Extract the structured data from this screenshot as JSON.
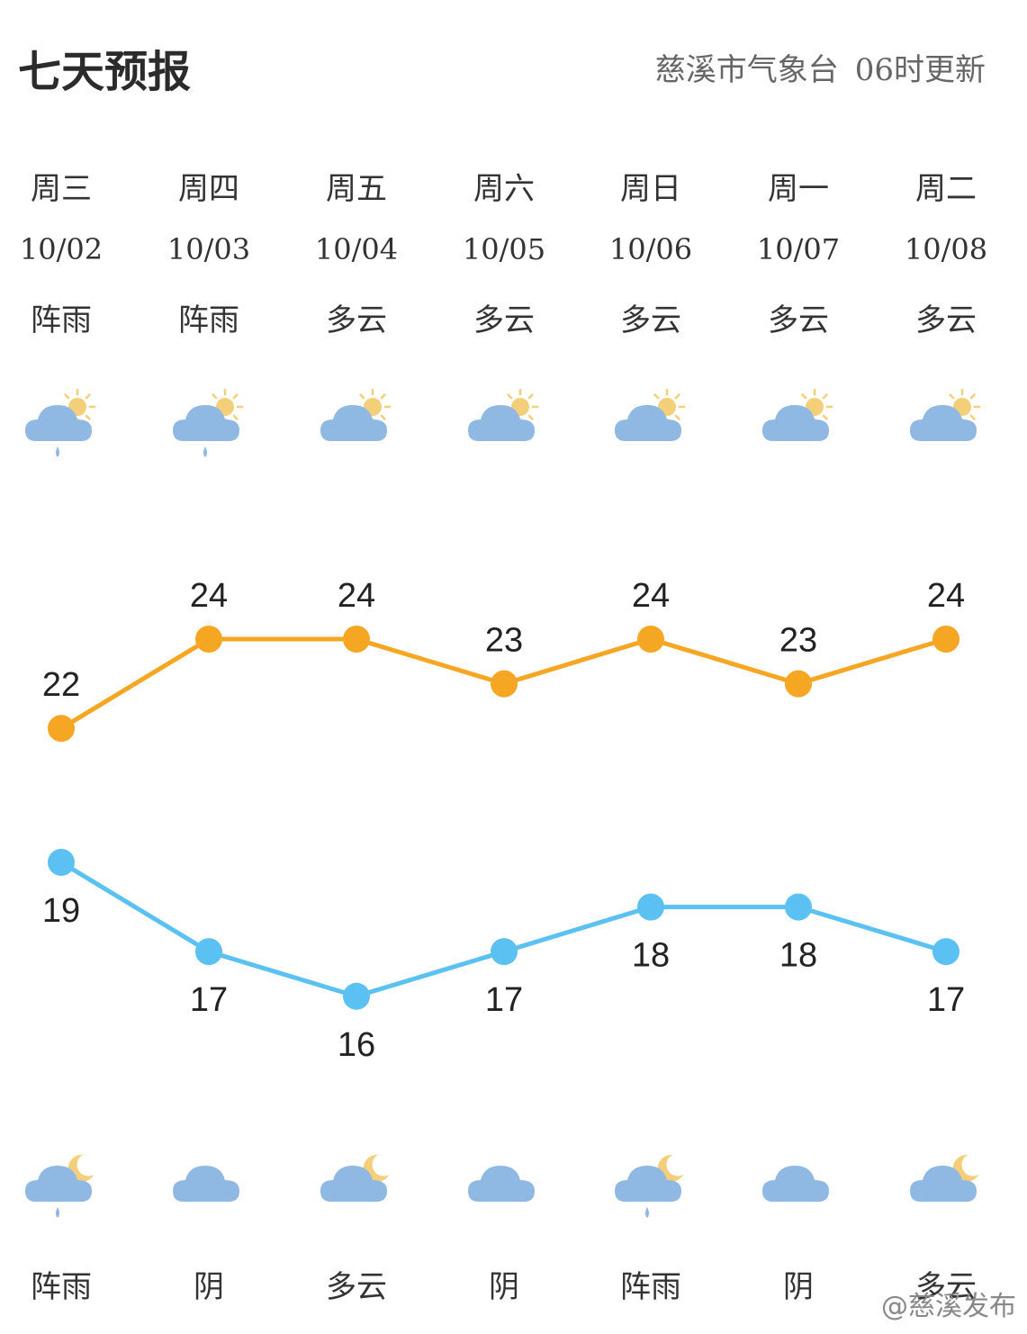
{
  "header": {
    "title": "七天预报",
    "station": "慈溪市气象台",
    "update": "06时更新"
  },
  "days": [
    {
      "dow": "周三",
      "date": "10/02",
      "day_weather": "阵雨",
      "day_icon": "cloud-sun-rain-icon",
      "night_weather": "阵雨",
      "night_icon": "cloud-moon-rain-icon"
    },
    {
      "dow": "周四",
      "date": "10/03",
      "day_weather": "阵雨",
      "day_icon": "cloud-sun-rain-icon",
      "night_weather": "阴",
      "night_icon": "cloud-icon"
    },
    {
      "dow": "周五",
      "date": "10/04",
      "day_weather": "多云",
      "day_icon": "cloud-sun-icon",
      "night_weather": "多云",
      "night_icon": "cloud-moon-icon"
    },
    {
      "dow": "周六",
      "date": "10/05",
      "day_weather": "多云",
      "day_icon": "cloud-sun-icon",
      "night_weather": "阴",
      "night_icon": "cloud-icon"
    },
    {
      "dow": "周日",
      "date": "10/06",
      "day_weather": "多云",
      "day_icon": "cloud-sun-icon",
      "night_weather": "阵雨",
      "night_icon": "cloud-moon-rain-icon"
    },
    {
      "dow": "周一",
      "date": "10/07",
      "day_weather": "多云",
      "day_icon": "cloud-sun-icon",
      "night_weather": "阴",
      "night_icon": "cloud-icon"
    },
    {
      "dow": "周二",
      "date": "10/08",
      "day_weather": "多云",
      "day_icon": "cloud-sun-icon",
      "night_weather": "多云",
      "night_icon": "cloud-moon-icon"
    }
  ],
  "chart_data": {
    "type": "line",
    "categories": [
      "10/02",
      "10/03",
      "10/04",
      "10/05",
      "10/06",
      "10/07",
      "10/08"
    ],
    "series": [
      {
        "values": [
          22,
          24,
          24,
          23,
          24,
          23,
          24
        ],
        "color": "#f5a623"
      },
      {
        "values": [
          19,
          17,
          16,
          17,
          18,
          18,
          17
        ],
        "color": "#5bc0f2"
      }
    ]
  },
  "colors": {
    "high": "#f5a623",
    "low": "#5bc0f2",
    "cloud": "#8fb8e2",
    "sun": "#f4cf7a"
  },
  "watermark": "@慈溪发布"
}
